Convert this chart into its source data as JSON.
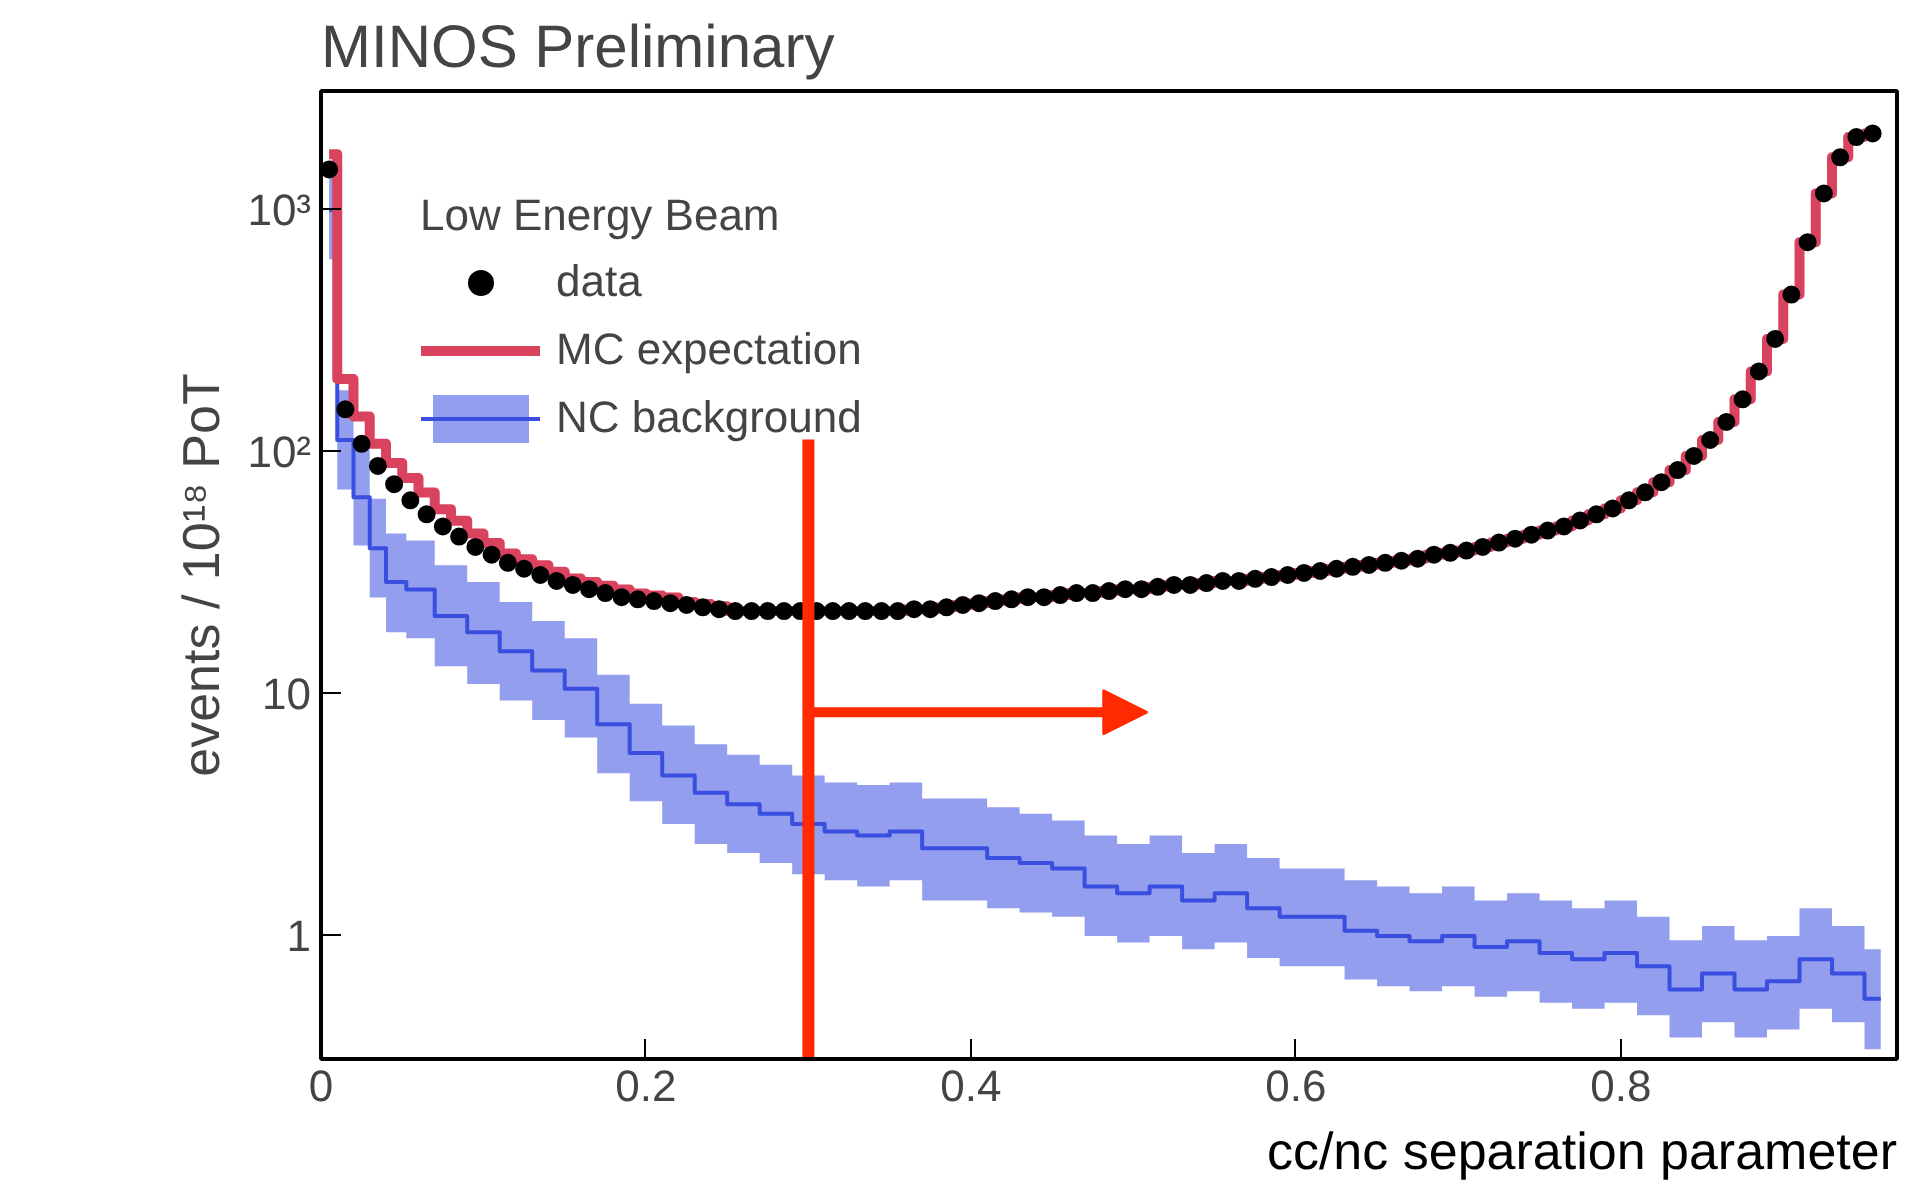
{
  "chart_data": {
    "type": "scatter",
    "title": "MINOS Preliminary",
    "xlabel": "cc/nc separation parameter",
    "ylabel": "events / 10¹⁸ PoT",
    "legend_title": "Low Energy Beam",
    "log": "y",
    "xlim": [
      0,
      0.97
    ],
    "ylim": [
      0.31,
      3100
    ],
    "xticks": [
      0,
      0.2,
      0.4,
      0.6,
      0.8
    ],
    "yticks": [
      1,
      10,
      {
        "value": 100,
        "label": "10²"
      },
      {
        "value": 1000,
        "label": "10³"
      }
    ],
    "grid": false,
    "legend": "top left",
    "ref_lines": [
      {
        "axis": "x",
        "value": 0.3,
        "color": "#ff2a00"
      }
    ],
    "series": [
      {
        "name": "NC background",
        "type": "step",
        "color": "#3a4fe0",
        "x": [
          0.005,
          0.015,
          0.025,
          0.035,
          0.045,
          0.06,
          0.08,
          0.1,
          0.12,
          0.14,
          0.16,
          0.18,
          0.2,
          0.22,
          0.24,
          0.26,
          0.28,
          0.3,
          0.32,
          0.34,
          0.36,
          0.38,
          0.4,
          0.42,
          0.44,
          0.46,
          0.48,
          0.5,
          0.52,
          0.54,
          0.56,
          0.58,
          0.6,
          0.62,
          0.64,
          0.66,
          0.68,
          0.7,
          0.72,
          0.74,
          0.76,
          0.78,
          0.8,
          0.82,
          0.84,
          0.86,
          0.88,
          0.9,
          0.92,
          0.94,
          0.96
        ],
        "values": [
          1000,
          112,
          65,
          40,
          29,
          27,
          21,
          18,
          15,
          12.5,
          10.5,
          7.5,
          5.7,
          4.6,
          3.9,
          3.5,
          3.2,
          2.9,
          2.7,
          2.6,
          2.7,
          2.3,
          2.3,
          2.1,
          2.0,
          1.9,
          1.6,
          1.5,
          1.6,
          1.4,
          1.5,
          1.3,
          1.2,
          1.2,
          1.05,
          1.0,
          0.95,
          1.0,
          0.9,
          0.95,
          0.85,
          0.8,
          0.85,
          0.75,
          0.6,
          0.7,
          0.6,
          0.65,
          0.8,
          0.7,
          0.55
        ],
        "lower": [
          625,
          70,
          41,
          25,
          18,
          17,
          13,
          11,
          9.4,
          7.8,
          6.6,
          4.7,
          3.6,
          2.9,
          2.4,
          2.2,
          2.0,
          1.8,
          1.7,
          1.6,
          1.7,
          1.4,
          1.4,
          1.3,
          1.25,
          1.2,
          1.0,
          0.94,
          1.0,
          0.88,
          0.94,
          0.81,
          0.75,
          0.75,
          0.66,
          0.62,
          0.59,
          0.62,
          0.56,
          0.59,
          0.53,
          0.5,
          0.53,
          0.47,
          0.38,
          0.44,
          0.38,
          0.41,
          0.5,
          0.44,
          0.34
        ],
        "upper": [
          1600,
          180,
          104,
          64,
          46,
          43,
          34,
          29,
          24,
          20,
          17,
          12,
          9.1,
          7.4,
          6.2,
          5.6,
          5.1,
          4.6,
          4.3,
          4.2,
          4.3,
          3.7,
          3.7,
          3.4,
          3.2,
          3.0,
          2.6,
          2.4,
          2.6,
          2.2,
          2.4,
          2.1,
          1.9,
          1.9,
          1.7,
          1.6,
          1.5,
          1.6,
          1.4,
          1.5,
          1.4,
          1.3,
          1.4,
          1.2,
          0.96,
          1.1,
          0.96,
          1.0,
          1.3,
          1.1,
          0.88
        ]
      },
      {
        "name": "MC expectation",
        "type": "step",
        "color": "#d9435e",
        "x": [
          0.005,
          0.015,
          0.025,
          0.035,
          0.045,
          0.055,
          0.065,
          0.075,
          0.085,
          0.095,
          0.105,
          0.115,
          0.125,
          0.135,
          0.145,
          0.155,
          0.165,
          0.175,
          0.185,
          0.195,
          0.205,
          0.215,
          0.225,
          0.235,
          0.245,
          0.255,
          0.265,
          0.275,
          0.285,
          0.295,
          0.305,
          0.315,
          0.325,
          0.335,
          0.345,
          0.355,
          0.365,
          0.375,
          0.385,
          0.395,
          0.405,
          0.415,
          0.425,
          0.435,
          0.445,
          0.455,
          0.465,
          0.475,
          0.485,
          0.495,
          0.505,
          0.515,
          0.525,
          0.535,
          0.545,
          0.555,
          0.565,
          0.575,
          0.585,
          0.595,
          0.605,
          0.615,
          0.625,
          0.635,
          0.645,
          0.655,
          0.665,
          0.675,
          0.685,
          0.695,
          0.705,
          0.715,
          0.725,
          0.735,
          0.745,
          0.755,
          0.765,
          0.775,
          0.785,
          0.795,
          0.805,
          0.815,
          0.825,
          0.835,
          0.845,
          0.855,
          0.865,
          0.875,
          0.885,
          0.895,
          0.905,
          0.915,
          0.925,
          0.935,
          0.945,
          0.955
        ],
        "values": [
          1700,
          200,
          140,
          108,
          90,
          78,
          68,
          58,
          52,
          46,
          42,
          38,
          36,
          34,
          32,
          30,
          29,
          28,
          27,
          26,
          25.5,
          25,
          24,
          23.5,
          23,
          22.0,
          22.0,
          22.0,
          22.0,
          22.0,
          22.0,
          22.0,
          22.0,
          22.0,
          22.0,
          22.0,
          22.4,
          22.4,
          22.8,
          23.3,
          23.7,
          24.2,
          24.6,
          25.1,
          25.1,
          25.6,
          26.1,
          26.1,
          26.6,
          27.1,
          27.1,
          27.7,
          28.2,
          28.2,
          28.7,
          29.3,
          29.3,
          29.9,
          30.4,
          31.0,
          31.6,
          32.2,
          32.9,
          33.5,
          34.1,
          34.8,
          35.5,
          36.2,
          37.6,
          38.3,
          39.1,
          40.5,
          42.2,
          43.8,
          45.5,
          47.3,
          49.2,
          52.1,
          55.2,
          58.4,
          63.1,
          68.1,
          75.0,
          84.1,
          96.2,
          112,
          133,
          165,
          215,
          293,
          447,
          736,
          1170,
          1650,
          2000,
          2070
        ]
      },
      {
        "name": "data",
        "color": "#000000",
        "marker": "circle",
        "x": [
          0.005,
          0.015,
          0.025,
          0.035,
          0.045,
          0.055,
          0.065,
          0.075,
          0.085,
          0.095,
          0.105,
          0.115,
          0.125,
          0.135,
          0.145,
          0.155,
          0.165,
          0.175,
          0.185,
          0.195,
          0.205,
          0.215,
          0.225,
          0.235,
          0.245,
          0.255,
          0.265,
          0.275,
          0.285,
          0.295,
          0.305,
          0.315,
          0.325,
          0.335,
          0.345,
          0.355,
          0.365,
          0.375,
          0.385,
          0.395,
          0.405,
          0.415,
          0.425,
          0.435,
          0.445,
          0.455,
          0.465,
          0.475,
          0.485,
          0.495,
          0.505,
          0.515,
          0.525,
          0.535,
          0.545,
          0.555,
          0.565,
          0.575,
          0.585,
          0.595,
          0.605,
          0.615,
          0.625,
          0.635,
          0.645,
          0.655,
          0.665,
          0.675,
          0.685,
          0.695,
          0.705,
          0.715,
          0.725,
          0.735,
          0.745,
          0.755,
          0.765,
          0.775,
          0.785,
          0.795,
          0.805,
          0.815,
          0.825,
          0.835,
          0.845,
          0.855,
          0.865,
          0.875,
          0.885,
          0.895,
          0.905,
          0.915,
          0.925,
          0.935,
          0.945,
          0.955
        ],
        "values": [
          1470,
          150,
          108,
          87.5,
          73.6,
          63.1,
          55.2,
          49.2,
          44.7,
          40.5,
          37.6,
          34.8,
          32.9,
          31.0,
          29.3,
          28.2,
          27.1,
          26.1,
          25.1,
          24.6,
          24.2,
          23.7,
          23.3,
          22.8,
          22.4,
          22.0,
          22.0,
          22.0,
          22.0,
          22.0,
          22.0,
          22.0,
          22.0,
          22.0,
          22.0,
          22.0,
          22.4,
          22.4,
          22.8,
          23.3,
          23.7,
          24.2,
          24.6,
          25.1,
          25.1,
          25.6,
          26.1,
          26.1,
          26.6,
          27.1,
          27.1,
          27.7,
          28.2,
          28.2,
          28.7,
          29.3,
          29.3,
          29.9,
          30.4,
          31.0,
          31.6,
          32.2,
          32.9,
          33.5,
          34.1,
          34.8,
          35.5,
          36.2,
          37.6,
          38.3,
          39.1,
          40.5,
          42.2,
          43.8,
          45.5,
          47.3,
          49.2,
          52.1,
          55.2,
          58.4,
          63.1,
          68.1,
          75.0,
          84.1,
          96.2,
          112,
          133,
          165,
          215,
          293,
          447,
          736,
          1170,
          1650,
          2000,
          2070
        ]
      }
    ]
  }
}
